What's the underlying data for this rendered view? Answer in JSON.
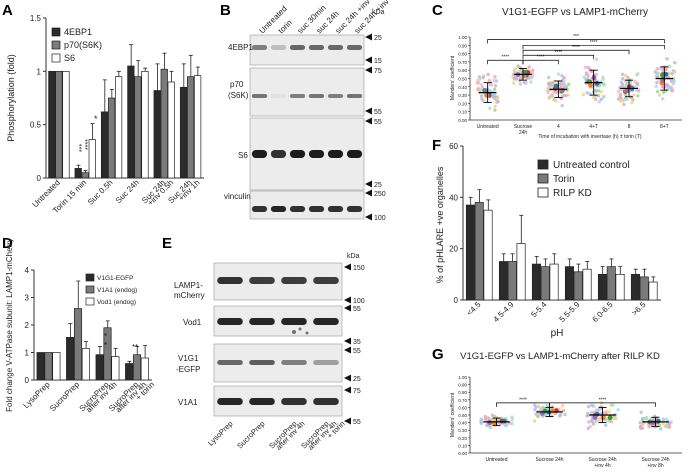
{
  "panel_letters": [
    "A",
    "B",
    "C",
    "D",
    "E",
    "F",
    "G"
  ],
  "colors": {
    "dark": "#2b2b2b",
    "mid": "#7a7a7a",
    "light": "#ffffff",
    "accent": "#000000"
  },
  "chart_data": [
    {
      "id": "A",
      "type": "bar",
      "ylabel": "Phosphorylation (fold)",
      "ylim": [
        0,
        1.5
      ],
      "yticks": [
        "0",
        "0.5",
        "1",
        "1.5"
      ],
      "categories": [
        "Untreated",
        "Torin 15 min",
        "Suc 0.5h",
        "Suc 24h",
        "Suc 24h +inv 0.5h",
        "Suc 24h +inv 1h"
      ],
      "series": [
        {
          "name": "4EBP1",
          "values": [
            1,
            0.09,
            0.62,
            1.05,
            0.82,
            0.85
          ],
          "err": [
            0,
            0.03,
            0.3,
            0.2,
            0.25,
            0.22
          ]
        },
        {
          "name": "p70(S6K)",
          "values": [
            1,
            0.05,
            0.75,
            0.95,
            1.02,
            0.95
          ],
          "err": [
            0,
            0.02,
            0.08,
            0.15,
            0.15,
            0.2
          ]
        },
        {
          "name": "S6",
          "values": [
            1,
            0.36,
            0.95,
            1.0,
            0.9,
            0.96
          ],
          "err": [
            0,
            0.15,
            0.05,
            0.03,
            0.1,
            0.08
          ]
        }
      ],
      "legend": "top-left",
      "annotations": [
        "***",
        "****",
        "*"
      ]
    },
    {
      "id": "B",
      "type": "blot",
      "lanes": [
        "Untreated",
        "torin",
        "suc 30min",
        "suc 24h",
        "suc 24h +inv 0.5h",
        "suc 24h +inv 1h"
      ],
      "rows": [
        "4EBP1",
        "p70 (S6K)",
        "S6",
        "vinculin"
      ],
      "kda_header": "kDa",
      "markers": [
        "25",
        "15",
        "75",
        "55",
        "55",
        "25",
        "250",
        "100"
      ]
    },
    {
      "id": "C",
      "type": "scatter",
      "title": "V1G1-EGFP vs LAMP1-mCherry",
      "ylabel": "Manders' coefficient",
      "xlabel": "Time of incubation with invertase (h) ± torin (T)",
      "ylim": [
        0,
        1.0
      ],
      "yticks": [
        "0.00",
        "0.10",
        "0.20",
        "0.30",
        "0.40",
        "0.50",
        "0.60",
        "0.70",
        "0.80",
        "0.90",
        "1.00"
      ],
      "categories": [
        "Untreated",
        "Sucrose 24h",
        "4",
        "4+T",
        "8",
        "8+T"
      ],
      "means": [
        0.33,
        0.55,
        0.37,
        0.45,
        0.38,
        0.5
      ],
      "sd": [
        0.12,
        0.07,
        0.1,
        0.15,
        0.1,
        0.14
      ],
      "significance": [
        "****",
        "****",
        "****",
        "****",
        "****",
        "***"
      ]
    },
    {
      "id": "D",
      "type": "bar",
      "ylabel": "Fold change V-ATPase subunit: LAMP1-mCherry",
      "ylim": [
        0,
        4
      ],
      "yticks": [
        "0",
        "1",
        "2",
        "3",
        "4"
      ],
      "categories": [
        "LysoPrep",
        "SucroPrep",
        "SucroPrep after inv 4h",
        "SucroPrep after inv 4h + torin"
      ],
      "series": [
        {
          "name": "V1G1-EGFP",
          "values": [
            1,
            1.55,
            0.92,
            0.6
          ],
          "err": [
            0,
            0.5,
            0.3,
            0.08
          ]
        },
        {
          "name": "V1A1 (endog)",
          "values": [
            1,
            2.6,
            1.9,
            0.92
          ],
          "err": [
            0,
            1.0,
            0.25,
            0.3
          ]
        },
        {
          "name": "Vod1 (endog)",
          "values": [
            1,
            1.15,
            0.85,
            0.8
          ],
          "err": [
            0,
            0.25,
            0.3,
            0.45
          ]
        }
      ],
      "annotations": [
        "*",
        "*",
        "**"
      ]
    },
    {
      "id": "E",
      "type": "blot",
      "lanes": [
        "LysoPrep",
        "SucroPrep",
        "SucroPrep after inv 4h",
        "SucroPrep after inv 4h + torin"
      ],
      "rows": [
        "LAMP1-mCherry",
        "Vod1",
        "V1G1 -EGFP",
        "V1A1"
      ],
      "kda_header": "kDa",
      "markers": [
        "150",
        "100",
        "55",
        "35",
        "55",
        "25",
        "75",
        "55"
      ]
    },
    {
      "id": "F",
      "type": "bar",
      "ylabel": "% of pHLARE +ve organelles",
      "xlabel": "pH",
      "ylim": [
        0,
        60
      ],
      "yticks": [
        "0",
        "20",
        "40",
        "60"
      ],
      "categories": [
        "<4.5",
        "4.5-4.9",
        "5-5.4",
        "5.5-5.9",
        "6.0-6.5",
        ">6.5"
      ],
      "series": [
        {
          "name": "Untreated control",
          "values": [
            37,
            15,
            14,
            13,
            10,
            10
          ],
          "err": [
            3,
            3,
            3,
            3,
            3,
            2
          ]
        },
        {
          "name": "Torin",
          "values": [
            38,
            15,
            13,
            11,
            13,
            9
          ],
          "err": [
            5,
            3,
            3,
            3,
            3,
            3
          ]
        },
        {
          "name": "RILP KD",
          "values": [
            35,
            22,
            14,
            12,
            10,
            7
          ],
          "err": [
            4,
            11,
            4,
            3,
            3,
            2
          ]
        }
      ],
      "legend": "top-right"
    },
    {
      "id": "G",
      "type": "scatter",
      "title": "V1G1-EGFP vs LAMP1-mCherry after RILP KD",
      "ylabel": "Manders' coefficient",
      "ylim": [
        0,
        1.0
      ],
      "yticks": [
        "0.00",
        "0.10",
        "0.20",
        "0.30",
        "0.40",
        "0.50",
        "0.60",
        "0.70",
        "0.80",
        "0.90",
        "1.00"
      ],
      "categories": [
        "Untreated",
        "Sucrose 24h",
        "Sucrose 24h +inv 4h",
        "Sucrose 24h +inv 8h"
      ],
      "means": [
        0.41,
        0.54,
        0.5,
        0.41
      ],
      "sd": [
        0.05,
        0.06,
        0.1,
        0.06
      ],
      "significance": [
        "****",
        "****"
      ]
    }
  ]
}
